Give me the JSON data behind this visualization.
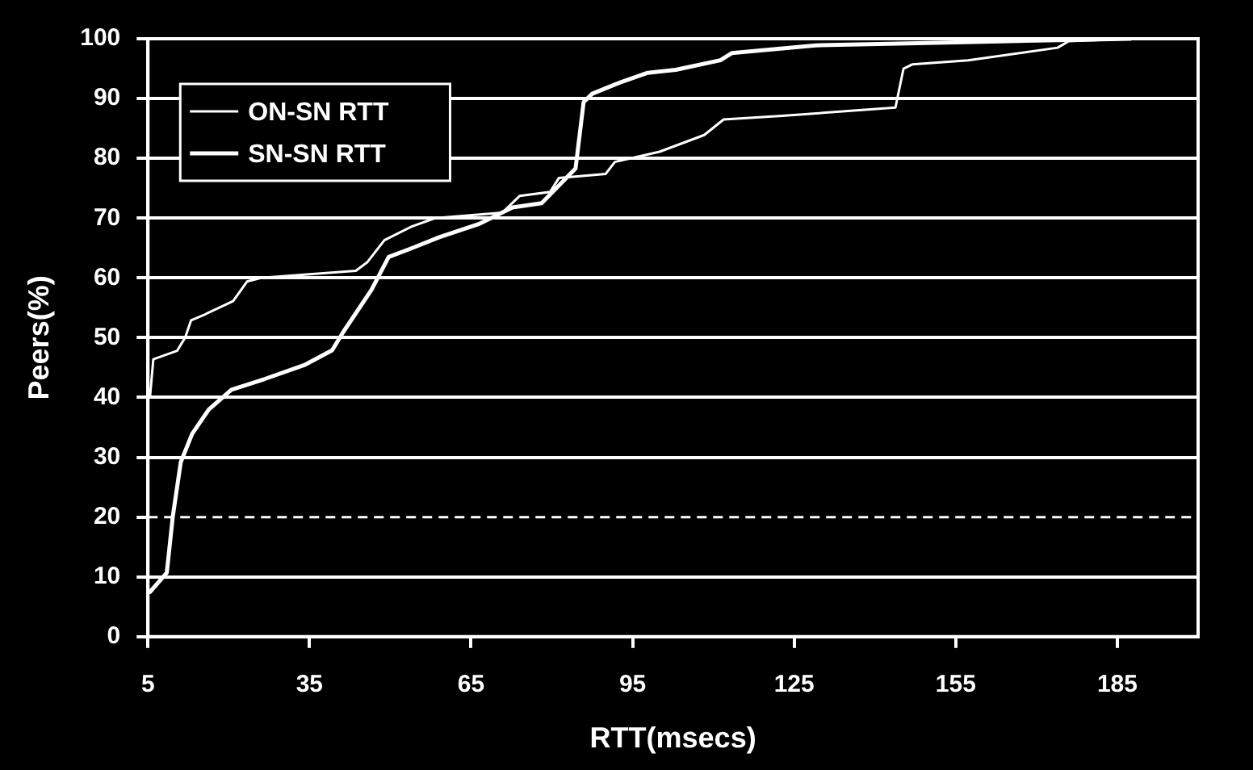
{
  "chart_data": {
    "type": "line",
    "xlabel": "RTT(msecs)",
    "ylabel": "Peers(%)",
    "xlim": [
      5,
      200
    ],
    "xticks": [
      5,
      35,
      65,
      95,
      125,
      155,
      185
    ],
    "ylim": [
      0,
      100
    ],
    "yticks": [
      0,
      10,
      20,
      30,
      40,
      50,
      60,
      70,
      80,
      90,
      100
    ],
    "grid": "y",
    "legend": "top left",
    "marker": "none",
    "line_style": "solid",
    "ref_lines": [
      {
        "axis": "y",
        "value": 20,
        "line_style": "dashed",
        "color": "#ffffff"
      }
    ],
    "series": [
      {
        "name": "ON-SN RTT",
        "color": "#ffffff",
        "x": [
          5.4,
          6,
          10.4,
          11.9,
          13,
          15.6,
          20.8,
          23.4,
          26,
          43.6,
          45.7,
          48.9,
          54,
          58.3,
          70.8,
          74,
          79.7,
          81.3,
          90,
          91.7,
          100,
          108.3,
          111.9,
          122.8,
          143.8,
          145.3,
          146.9,
          157.3,
          173.9,
          176,
          187.5
        ],
        "values": [
          40.3,
          46.4,
          47.8,
          50,
          52.9,
          53.9,
          56.1,
          59.4,
          60,
          61.2,
          62.6,
          66.3,
          68.6,
          70,
          70.9,
          73.7,
          74.4,
          76.7,
          77.4,
          79.4,
          81.1,
          83.9,
          86.5,
          87.1,
          88.5,
          95,
          95.7,
          96.4,
          98.5,
          99.6,
          100
        ]
      },
      {
        "name": "SN-SN RTT",
        "color": "#ffffff",
        "x": [
          5.4,
          8.5,
          9.6,
          11.1,
          13.2,
          16.3,
          20.5,
          26.7,
          34,
          39.2,
          41.3,
          46.5,
          49.7,
          53.8,
          59.1,
          66.4,
          72.7,
          78.1,
          84.4,
          85.9,
          87.5,
          92.7,
          97.8,
          103,
          111.3,
          113.4,
          129,
          155,
          176,
          187.5
        ],
        "values": [
          7.5,
          10.7,
          20,
          29.2,
          33.9,
          38,
          41.3,
          43.1,
          45.4,
          47.9,
          51,
          58,
          63.5,
          64.9,
          66.8,
          69,
          71.8,
          72.5,
          78.3,
          89.4,
          90.8,
          92.7,
          94.3,
          94.8,
          96.4,
          97.6,
          98.9,
          99.4,
          99.8,
          100
        ]
      }
    ]
  }
}
